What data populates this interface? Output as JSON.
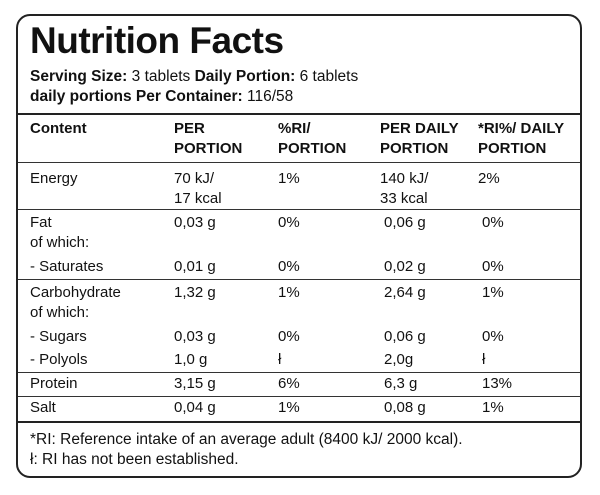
{
  "title": "Nutrition Facts",
  "serving": {
    "size_label": "Serving Size:",
    "size_value": " 3 tablets ",
    "daily_label": "Daily Portion:",
    "daily_value": " 6 tablets",
    "per_container_label": "daily portions Per Container:",
    "per_container_value": " 116/58"
  },
  "table": {
    "headers": [
      "Content",
      "PER\nPORTION",
      "%RI/\nPORTION",
      "PER DAILY\nPORTION",
      "*RI%/ DAILY\n PORTION"
    ],
    "rows": [
      {
        "cells": [
          "Energy",
          "70 kJ/\n17 kcal",
          "1%",
          "140 kJ/\n33 kcal",
          "  2%"
        ]
      },
      {
        "cells": [
          "Fat\nof which:",
          "0,03 g",
          "0%",
          "0,06 g",
          "0%"
        ]
      },
      {
        "cells": [
          "- Saturates",
          "0,01 g",
          "0%",
          "0,02 g",
          "0%"
        ]
      },
      {
        "cells": [
          "Carbohydrate\nof which:",
          "1,32 g",
          "1%",
          "2,64 g",
          "1%"
        ]
      },
      {
        "cells": [
          "- Sugars",
          "0,03 g",
          "0%",
          "0,06 g",
          "0%"
        ]
      },
      {
        "cells": [
          "- Polyols",
          "1,0 g",
          "ł",
          "2,0g",
          "ł"
        ]
      },
      {
        "cells": [
          "Protein",
          "3,15 g",
          "6%",
          "6,3 g",
          "13%"
        ]
      },
      {
        "cells": [
          "Salt",
          "0,04 g",
          "1%",
          "0,08 g",
          "1%"
        ]
      }
    ]
  },
  "footnotes": [
    "*RI: Reference intake of an average adult (8400 kJ/ 2000 kcal).",
    "ł: RI has not been established."
  ]
}
